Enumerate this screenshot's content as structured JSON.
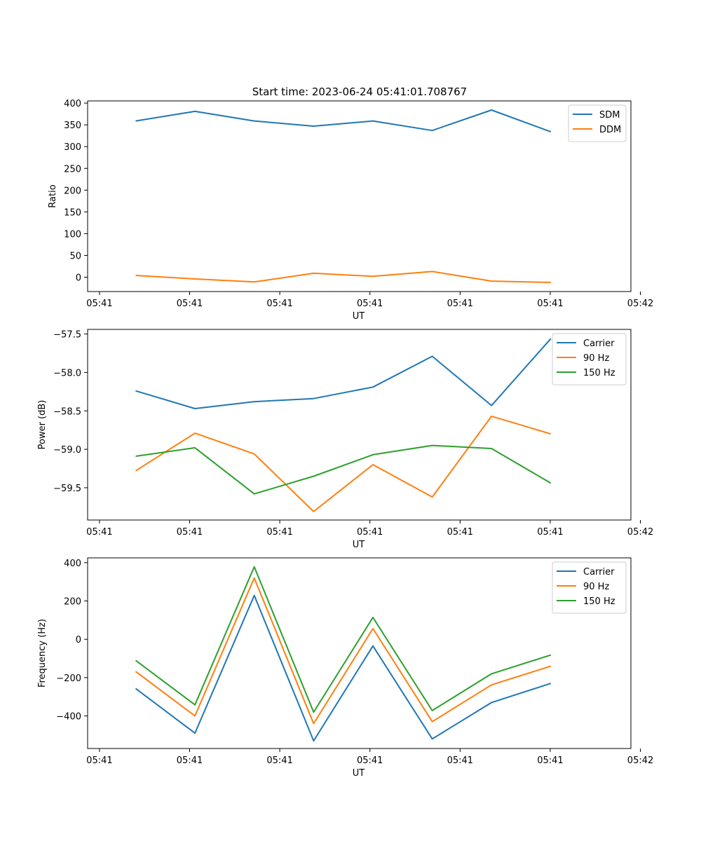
{
  "figure_title": "Start time: 2023-06-24 05:41:01.708767",
  "colors": {
    "blue": "#1f77b4",
    "orange": "#ff7f0e",
    "green": "#2ca02c"
  },
  "chart_data": [
    {
      "type": "line",
      "title": "Start time: 2023-06-24 05:41:01.708767",
      "xlabel": "UT",
      "ylabel": "Ratio",
      "x": [
        1,
        2,
        3,
        4,
        5,
        6,
        7,
        8
      ],
      "xlim": [
        0.19,
        9.35
      ],
      "xticks": [
        0.39,
        1.91,
        3.43,
        4.95,
        6.47,
        7.99,
        9.51
      ],
      "xtick_labels": [
        "05:41",
        "05:41",
        "05:41",
        "05:41",
        "05:41",
        "05:41",
        "05:42"
      ],
      "ylim": [
        -33,
        405
      ],
      "yticks": [
        0,
        50,
        100,
        150,
        200,
        250,
        300,
        350,
        400
      ],
      "ytick_labels": [
        "0",
        "50",
        "100",
        "150",
        "200",
        "250",
        "300",
        "350",
        "400"
      ],
      "legend": "top-right",
      "series": [
        {
          "name": "SDM",
          "color": "#1f77b4",
          "values": [
            359,
            381,
            359,
            347,
            359,
            337,
            384,
            334
          ]
        },
        {
          "name": "DDM",
          "color": "#ff7f0e",
          "values": [
            4,
            -4,
            -11,
            9,
            2,
            13,
            -9,
            -12
          ]
        }
      ]
    },
    {
      "type": "line",
      "title": "",
      "xlabel": "UT",
      "ylabel": "Power (dB)",
      "x": [
        1,
        2,
        3,
        4,
        5,
        6,
        7,
        8
      ],
      "xlim": [
        0.19,
        9.35
      ],
      "xticks": [
        0.39,
        1.91,
        3.43,
        4.95,
        6.47,
        7.99,
        9.51
      ],
      "xtick_labels": [
        "05:41",
        "05:41",
        "05:41",
        "05:41",
        "05:41",
        "05:41",
        "05:42"
      ],
      "ylim": [
        -59.92,
        -57.44
      ],
      "yticks": [
        -59.5,
        -59.0,
        -58.5,
        -58.0,
        -57.5
      ],
      "ytick_labels": [
        "−59.5",
        "−59.0",
        "−58.5",
        "−58.0",
        "−57.5"
      ],
      "legend": "top-right",
      "series": [
        {
          "name": "Carrier",
          "color": "#1f77b4",
          "values": [
            -58.24,
            -58.47,
            -58.38,
            -58.34,
            -58.19,
            -57.79,
            -58.43,
            -57.56
          ]
        },
        {
          "name": "90 Hz",
          "color": "#ff7f0e",
          "values": [
            -59.28,
            -58.79,
            -59.06,
            -59.81,
            -59.2,
            -59.62,
            -58.57,
            -58.8
          ]
        },
        {
          "name": "150 Hz",
          "color": "#2ca02c",
          "values": [
            -59.09,
            -58.98,
            -59.58,
            -59.35,
            -59.07,
            -58.95,
            -58.99,
            -59.44
          ]
        }
      ]
    },
    {
      "type": "line",
      "title": "",
      "xlabel": "UT",
      "ylabel": "Frequency (Hz)",
      "x": [
        1,
        2,
        3,
        4,
        5,
        6,
        7,
        8
      ],
      "xlim": [
        0.19,
        9.35
      ],
      "xticks": [
        0.39,
        1.91,
        3.43,
        4.95,
        6.47,
        7.99,
        9.51
      ],
      "xtick_labels": [
        "05:41",
        "05:41",
        "05:41",
        "05:41",
        "05:41",
        "05:41",
        "05:42"
      ],
      "ylim": [
        -570,
        425
      ],
      "yticks": [
        -400,
        -200,
        0,
        200,
        400
      ],
      "ytick_labels": [
        "−400",
        "−200",
        "0",
        "200",
        "400"
      ],
      "legend": "top-right",
      "series": [
        {
          "name": "Carrier",
          "color": "#1f77b4",
          "values": [
            -257,
            -490,
            229,
            -530,
            -35,
            -520,
            -330,
            -230
          ]
        },
        {
          "name": "90 Hz",
          "color": "#ff7f0e",
          "values": [
            -168,
            -400,
            320,
            -440,
            56,
            -430,
            -238,
            -140
          ]
        },
        {
          "name": "150 Hz",
          "color": "#2ca02c",
          "values": [
            -110,
            -342,
            378,
            -380,
            114,
            -372,
            -180,
            -82
          ]
        }
      ]
    }
  ]
}
